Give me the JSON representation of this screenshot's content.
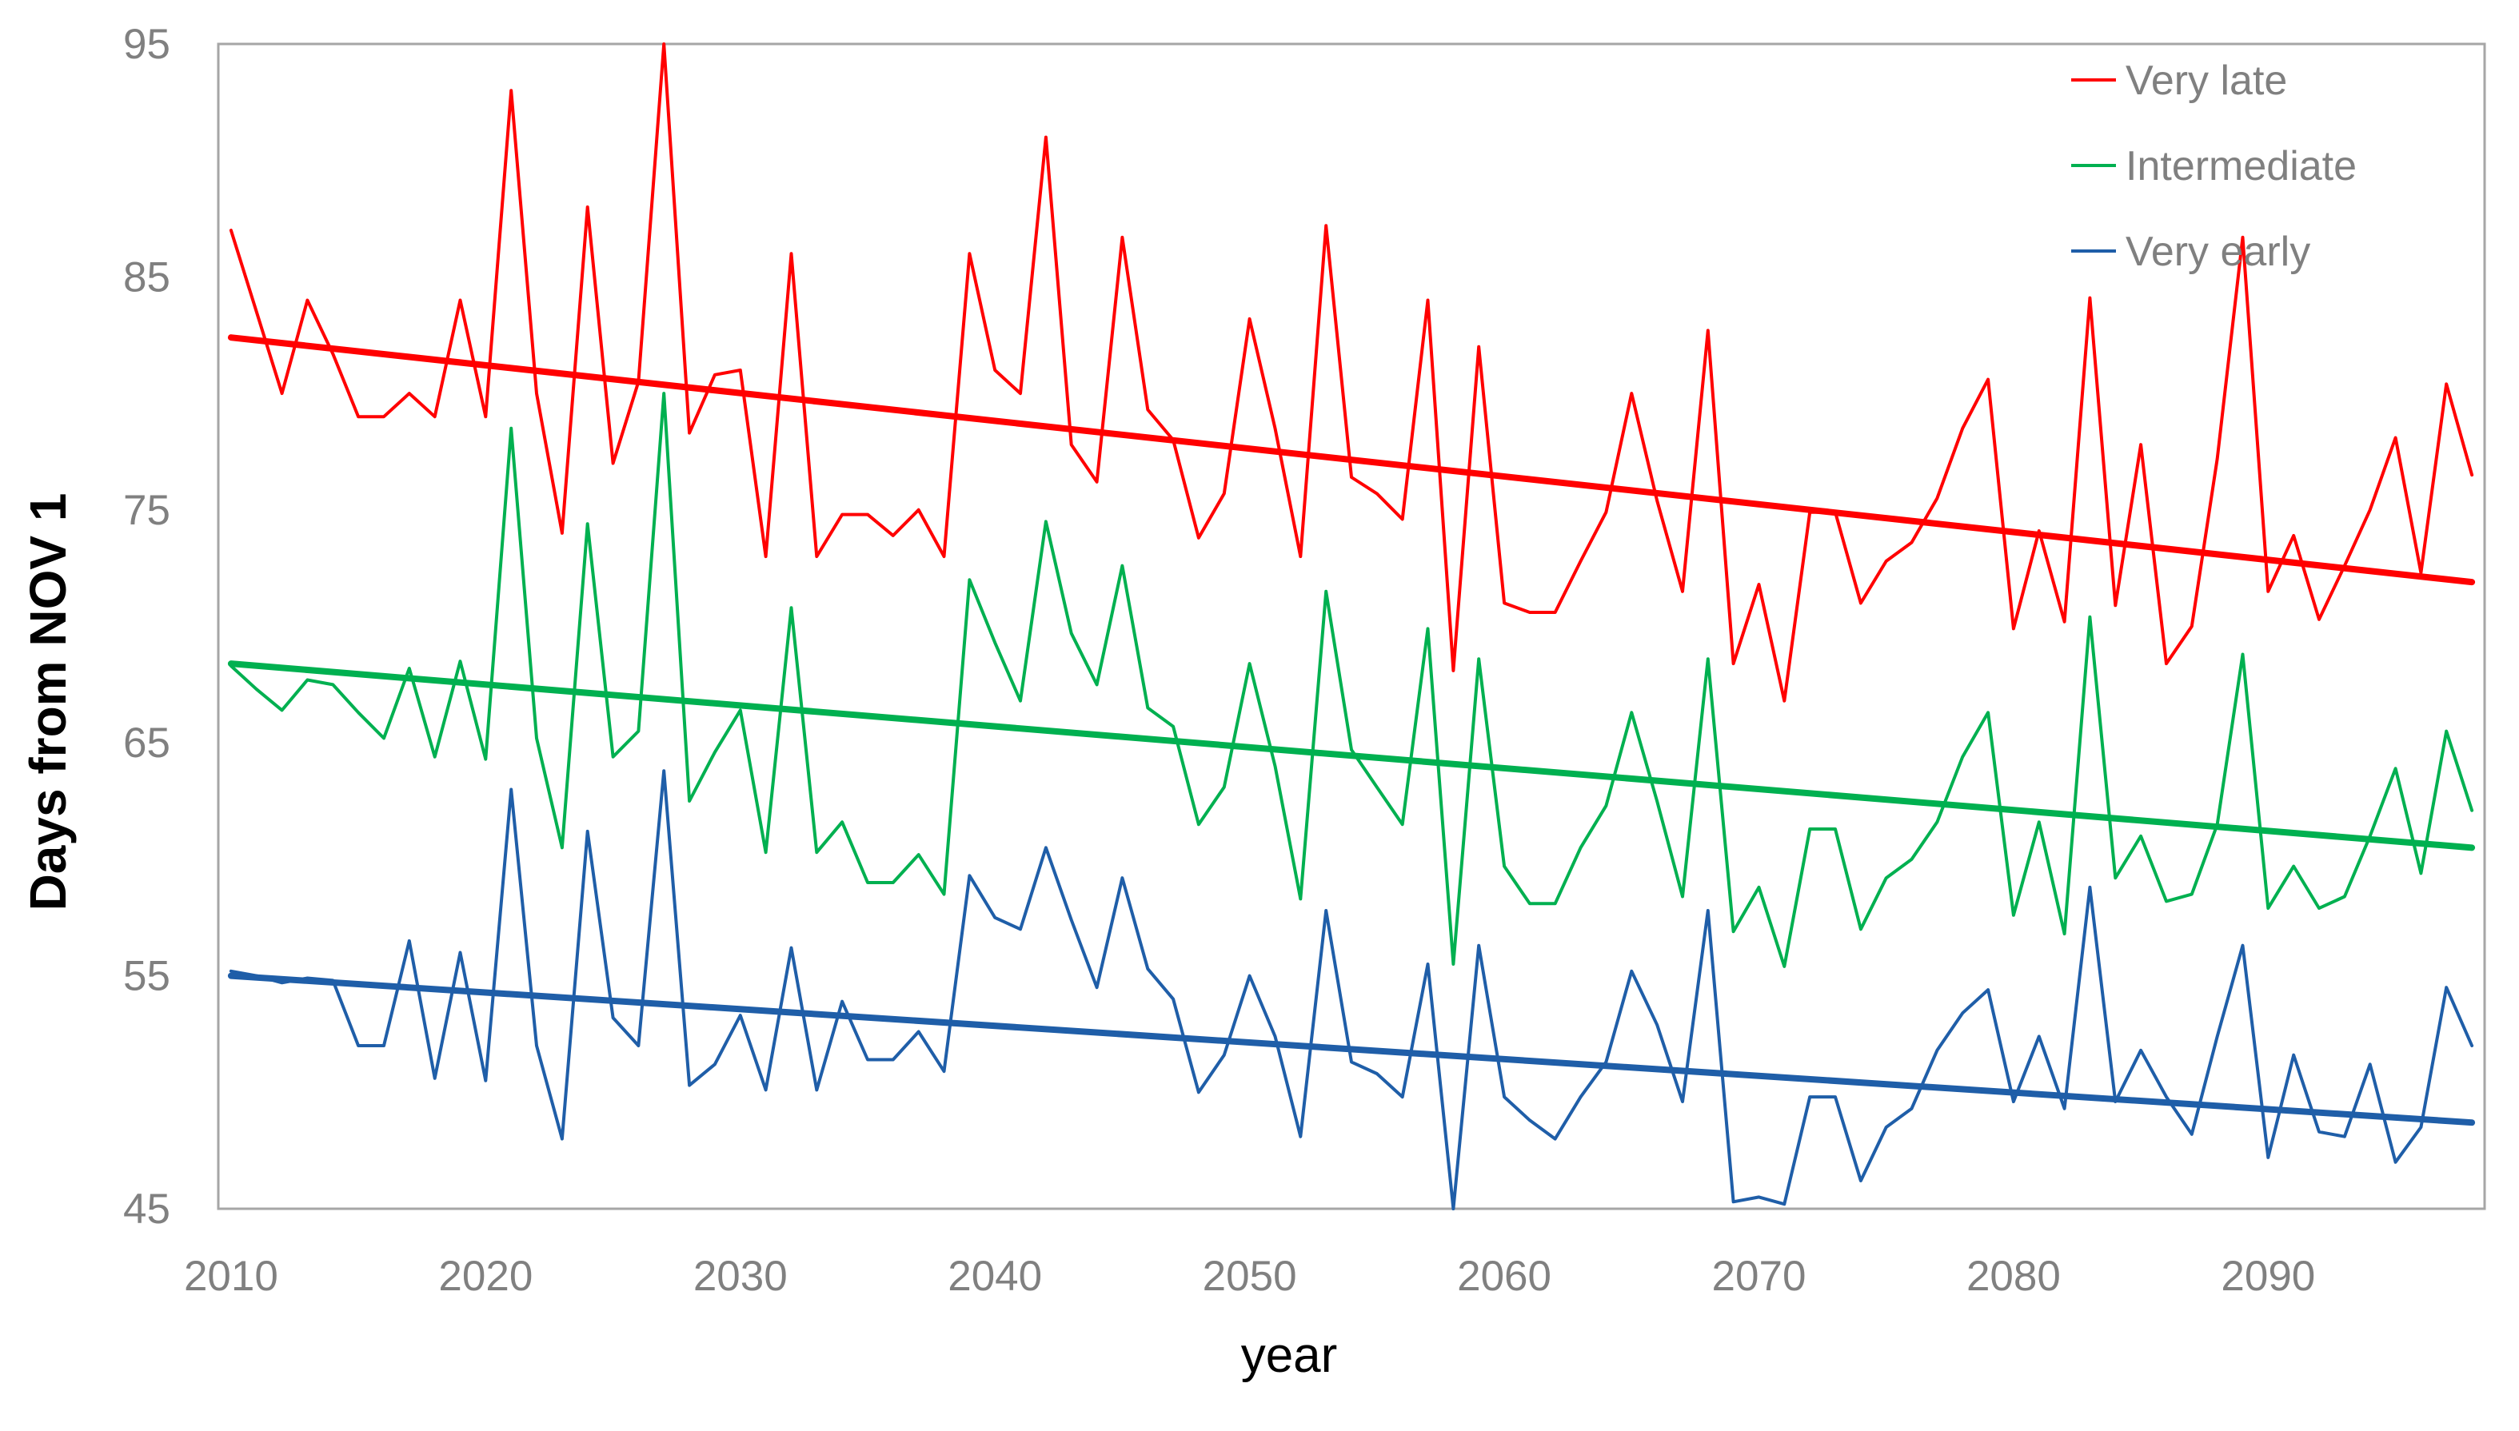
{
  "chart_data": {
    "type": "line",
    "title": "",
    "xlabel": "year",
    "ylabel": "Days from NOV 1",
    "x_start": 2010,
    "x_end": 2098,
    "ylim": [
      45,
      95
    ],
    "y_ticks": [
      95,
      85,
      75,
      65,
      55,
      45
    ],
    "x_ticks": [
      2010,
      2020,
      2030,
      2040,
      2050,
      2060,
      2070,
      2080,
      2090
    ],
    "grid": false,
    "legend_position": "top-right-inside",
    "frame_color": "#A6A6A6",
    "tick_label_color": "#808080",
    "series": [
      {
        "name": "Very late",
        "color": "#FF0000",
        "trend": [
          82.4,
          71.9
        ],
        "values": [
          87,
          83.5,
          80,
          84,
          81.7,
          79,
          79,
          80,
          79,
          84,
          79,
          93,
          80,
          74,
          88,
          77,
          80.5,
          95,
          78.3,
          80.8,
          81,
          73,
          86,
          73,
          74.8,
          74.8,
          73.9,
          75,
          73,
          86,
          81,
          80,
          91,
          77.8,
          76.2,
          86.7,
          79.3,
          78,
          73.8,
          75.7,
          83.2,
          78.5,
          73,
          87.2,
          76.4,
          75.7,
          74.6,
          84,
          68.1,
          82,
          71,
          70.6,
          70.6,
          72.8,
          74.9,
          80,
          75.4,
          71.5,
          82.7,
          68.4,
          71.8,
          66.8,
          74.9,
          74.9,
          71,
          72.8,
          73.6,
          75.5,
          78.5,
          80.6,
          69.9,
          74.1,
          70.2,
          84.1,
          70.9,
          77.8,
          68.4,
          70,
          77.2,
          86.7,
          71.5,
          73.9,
          70.3,
          72.6,
          75,
          78.1,
          72.3,
          80.4,
          76.5
        ]
      },
      {
        "name": "Intermediate",
        "color": "#00B050",
        "trend": [
          68.4,
          60.5
        ],
        "values": [
          68.3,
          67.3,
          66.4,
          67.7,
          67.5,
          66.3,
          65.2,
          68.2,
          64.4,
          68.5,
          64.3,
          78.5,
          65.2,
          60.5,
          74.4,
          64.4,
          65.5,
          80,
          62.5,
          64.6,
          66.4,
          60.3,
          70.8,
          60.3,
          61.6,
          59,
          59,
          60.2,
          58.5,
          72,
          69.3,
          66.8,
          74.5,
          69.7,
          67.5,
          72.6,
          66.5,
          65.7,
          61.5,
          63.1,
          68.4,
          64,
          58.3,
          71.5,
          64.7,
          63.1,
          61.5,
          69.9,
          55.5,
          68.6,
          59.7,
          58.1,
          58.1,
          60.5,
          62.3,
          66.3,
          62.5,
          58.4,
          68.6,
          56.9,
          58.8,
          55.4,
          61.3,
          61.3,
          57,
          59.2,
          60,
          61.6,
          64.4,
          66.3,
          57.6,
          61.6,
          56.8,
          70.4,
          59.2,
          61,
          58.2,
          58.5,
          61.5,
          68.8,
          57.9,
          59.7,
          57.9,
          58.4,
          61,
          63.9,
          59.4,
          65.5,
          62.1
        ]
      },
      {
        "name": "Very early",
        "color": "#1F5EA8",
        "trend": [
          55.0,
          48.7
        ],
        "values": [
          55.2,
          55,
          54.7,
          54.9,
          54.8,
          52,
          52,
          56.5,
          50.6,
          56,
          50.5,
          63,
          52,
          48,
          61.2,
          53.2,
          52,
          63.8,
          50.3,
          51.2,
          53.3,
          50.1,
          56.2,
          50.1,
          53.9,
          51.4,
          51.4,
          52.6,
          50.9,
          59.3,
          57.5,
          57,
          60.5,
          57.4,
          54.5,
          59.2,
          55.3,
          54,
          50,
          51.6,
          55,
          52.4,
          48.1,
          57.8,
          51.3,
          50.8,
          49.8,
          55.5,
          45,
          56.3,
          49.8,
          48.8,
          48,
          49.8,
          51.3,
          55.2,
          52.9,
          49.6,
          57.8,
          45.3,
          45.5,
          45.2,
          49.8,
          49.8,
          46.2,
          48.5,
          49.3,
          51.8,
          53.4,
          54.4,
          49.6,
          52.4,
          49.3,
          58.8,
          49.6,
          51.8,
          49.8,
          48.2,
          52.4,
          56.3,
          47.2,
          51.6,
          48.3,
          48.1,
          51.2,
          47,
          48.5,
          54.5,
          52
        ]
      }
    ]
  }
}
